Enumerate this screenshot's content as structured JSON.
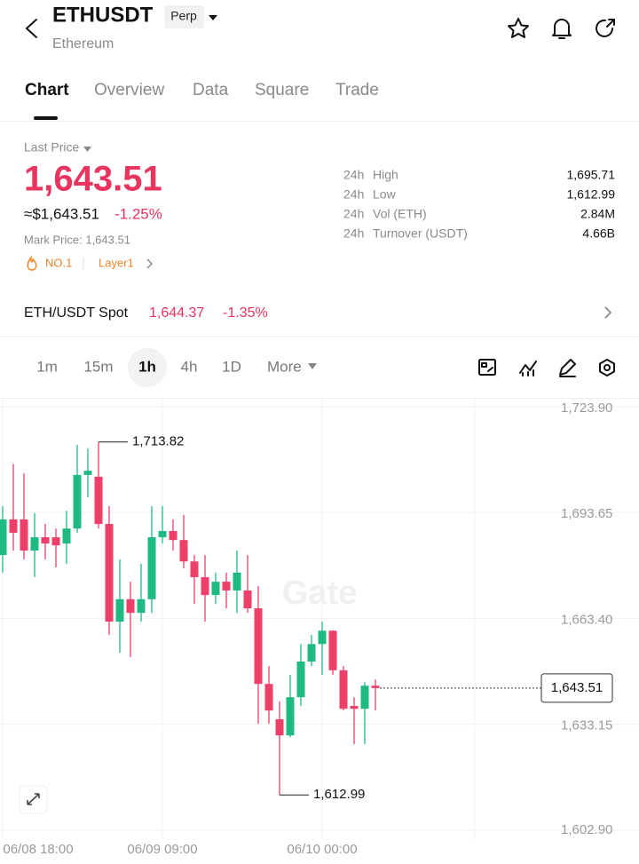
{
  "header": {
    "title": "ETHUSDT",
    "badge": "Perp",
    "subtitle": "Ethereum"
  },
  "tabs": {
    "items": [
      "Chart",
      "Overview",
      "Data",
      "Square",
      "Trade"
    ],
    "active": 0
  },
  "price": {
    "label": "Last Price",
    "last": "1,643.51",
    "approx": "≈$1,643.51",
    "change": "-1.25%",
    "mark": "Mark Price: 1,643.51",
    "rank": "NO.1",
    "tag": "Layer1"
  },
  "stats": [
    {
      "period": "24h",
      "label": "High",
      "value": "1,695.71"
    },
    {
      "period": "24h",
      "label": "Low",
      "value": "1,612.99"
    },
    {
      "period": "24h",
      "label": "Vol (ETH)",
      "value": "2.84M"
    },
    {
      "period": "24h",
      "label": "Turnover (USDT)",
      "value": "4.66B"
    }
  ],
  "spot": {
    "pair": "ETH/USDT Spot",
    "price": "1,644.37",
    "change": "-1.35%"
  },
  "timeframes": {
    "items": [
      "1m",
      "15m",
      "1h",
      "4h",
      "1D",
      "More"
    ],
    "active": 2
  },
  "chart_data": {
    "type": "candlestick",
    "watermark": "Gate",
    "categories": [
      "06/08 18:00",
      null,
      null,
      null,
      null,
      null,
      null,
      null,
      null,
      null,
      null,
      null,
      null,
      null,
      null,
      "06/09 09:00",
      null,
      null,
      null,
      null,
      null,
      null,
      null,
      null,
      null,
      null,
      null,
      null,
      null,
      null,
      "06/10 00:00",
      null,
      null,
      null,
      null,
      null
    ],
    "open": [
      1681.5,
      1691.7,
      1691.7,
      1682.8,
      1686.6,
      1686.6,
      1684.8,
      1689.1,
      1704.4,
      1703.9,
      1690.4,
      1662.5,
      1668.9,
      1665.0,
      1668.9,
      1686.6,
      1688.4,
      1685.8,
      1679.7,
      1675.2,
      1670.1,
      1673.9,
      1671.4,
      1671.4,
      1666.3,
      1644.7,
      1634.6,
      1630.0,
      1640.9,
      1651.1,
      1656.1,
      1659.9,
      1648.6,
      1638.4,
      1637.6,
      1644.2
    ],
    "high": [
      1695.5,
      1707.5,
      1704.9,
      1693.5,
      1690.4,
      1689.1,
      1694.2,
      1713.0,
      1712.0,
      1713.82,
      1695.5,
      1680.3,
      1673.9,
      1679.0,
      1695.5,
      1695.5,
      1691.7,
      1693.0,
      1681.5,
      1681.5,
      1676.5,
      1676.5,
      1682.8,
      1681.5,
      1672.7,
      1649.8,
      1639.7,
      1647.3,
      1656.1,
      1658.7,
      1662.5,
      1660.0,
      1649.8,
      1640.9,
      1645.2,
      1646.0
    ],
    "low": [
      1676.5,
      1682.8,
      1680.3,
      1675.2,
      1680.3,
      1678.0,
      1679.0,
      1687.9,
      1698.0,
      1689.1,
      1658.7,
      1653.6,
      1652.4,
      1662.5,
      1665.0,
      1684.8,
      1682.8,
      1677.7,
      1667.6,
      1662.5,
      1667.6,
      1666.3,
      1665.0,
      1665.0,
      1633.3,
      1633.3,
      1612.99,
      1629.5,
      1638.4,
      1649.8,
      1647.3,
      1647.3,
      1637.1,
      1627.5,
      1627.5,
      1637.1
    ],
    "close": [
      1691.7,
      1687.9,
      1682.8,
      1686.6,
      1684.8,
      1684.3,
      1689.1,
      1704.4,
      1705.6,
      1690.4,
      1662.5,
      1668.9,
      1665.0,
      1668.9,
      1686.6,
      1688.4,
      1685.8,
      1679.7,
      1675.2,
      1670.1,
      1673.9,
      1671.4,
      1676.5,
      1666.3,
      1644.7,
      1637.1,
      1630.0,
      1640.9,
      1651.1,
      1656.1,
      1659.9,
      1648.6,
      1637.6,
      1637.6,
      1644.2,
      1643.51
    ],
    "up_color": "#1fb982",
    "down_color": "#ee3f68",
    "ylim": [
      1602.9,
      1723.9
    ],
    "yticks": [
      {
        "value": 1723.9,
        "label": "1,723.90"
      },
      {
        "value": 1693.65,
        "label": "1,693.65"
      },
      {
        "value": 1663.4,
        "label": "1,663.40"
      },
      {
        "value": 1633.15,
        "label": "1,633.15"
      },
      {
        "value": 1602.9,
        "label": "1,602.90"
      }
    ],
    "grid": true,
    "high_marker": {
      "value": 1713.82,
      "label": "1,713.82"
    },
    "low_marker": {
      "value": 1612.99,
      "label": "1,612.99"
    },
    "last_price": {
      "value": 1643.51,
      "label": "1,643.51"
    }
  }
}
